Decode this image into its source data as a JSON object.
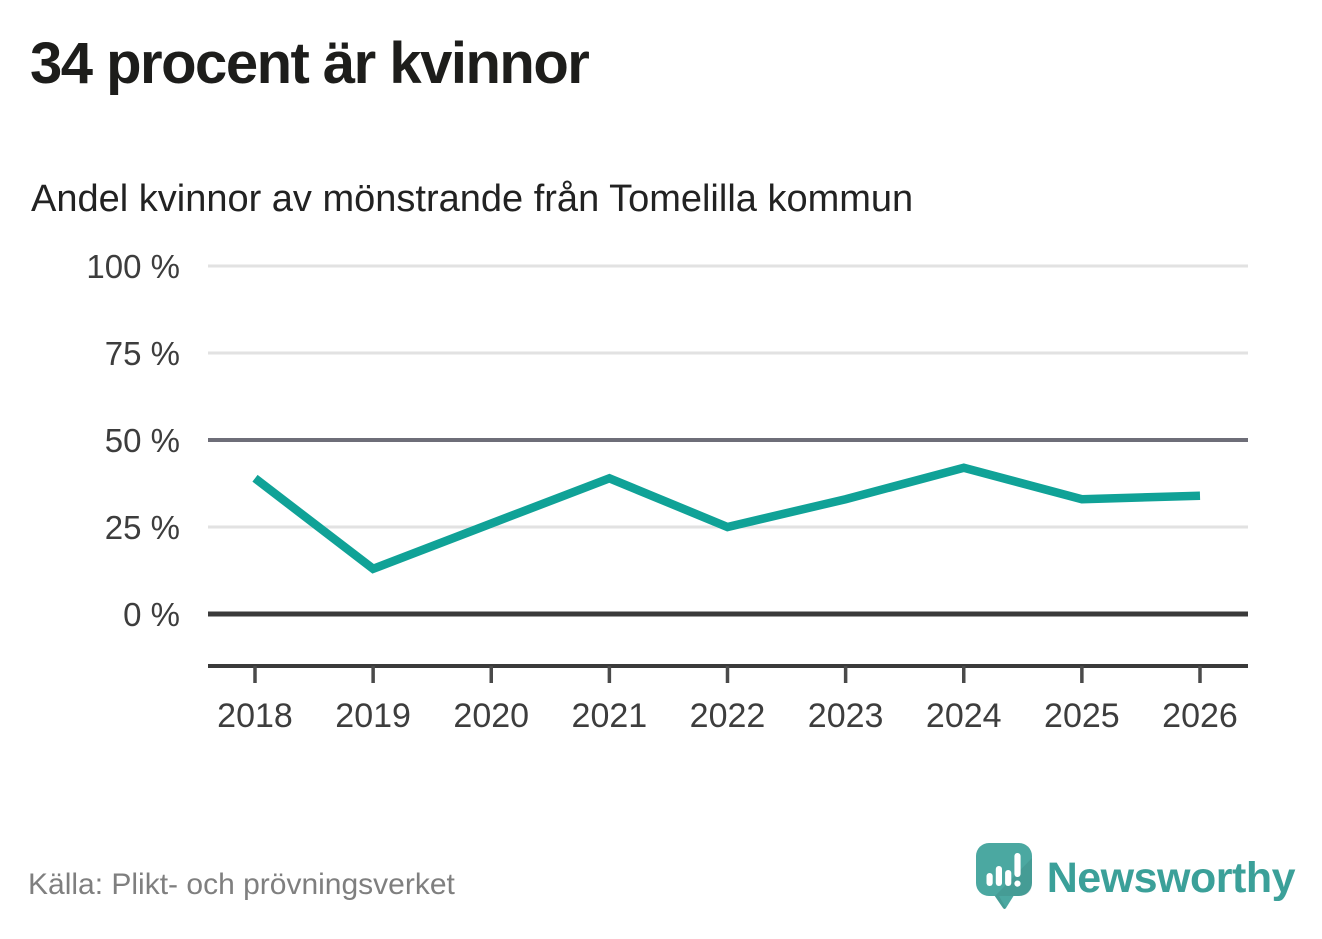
{
  "header": {
    "title": "34 procent är kvinnor",
    "subtitle": "Andel kvinnor av mönstrande från Tomelilla kommun"
  },
  "chart_data": {
    "type": "line",
    "x": [
      2018,
      2019,
      2020,
      2021,
      2022,
      2023,
      2024,
      2025,
      2026
    ],
    "series": [
      {
        "name": "Andel kvinnor av mönstrande",
        "values": [
          39,
          13,
          26,
          39,
          25,
          33,
          42,
          33,
          34
        ]
      }
    ],
    "title": "34 procent är kvinnor",
    "subtitle": "Andel kvinnor av mönstrande från Tomelilla kommun",
    "xlabel": "",
    "ylabel": "",
    "ylim": [
      0,
      100
    ],
    "yticks": [
      0,
      25,
      50,
      75,
      100
    ],
    "ytick_suffix": " %",
    "grid": true,
    "emphasized_gridlines": [
      0,
      50
    ],
    "legend": "none"
  },
  "footer": {
    "source": "Källa: Plikt- och prövningsverket",
    "brand": "Newsworthy"
  },
  "colors": {
    "accent_line": "#10a297",
    "grid_light": "#e2e2e2",
    "grid_mid": "#6e6e78",
    "axis_dark": "#3a3a3a",
    "tick_color": "#4a4a4a",
    "text_dark": "#3d3d3d",
    "logo_bubble": "#4ba8a1",
    "logo_word": "#3ba099"
  },
  "icons": {
    "logo": "newsworthy-speech-bubble-chart-icon"
  }
}
